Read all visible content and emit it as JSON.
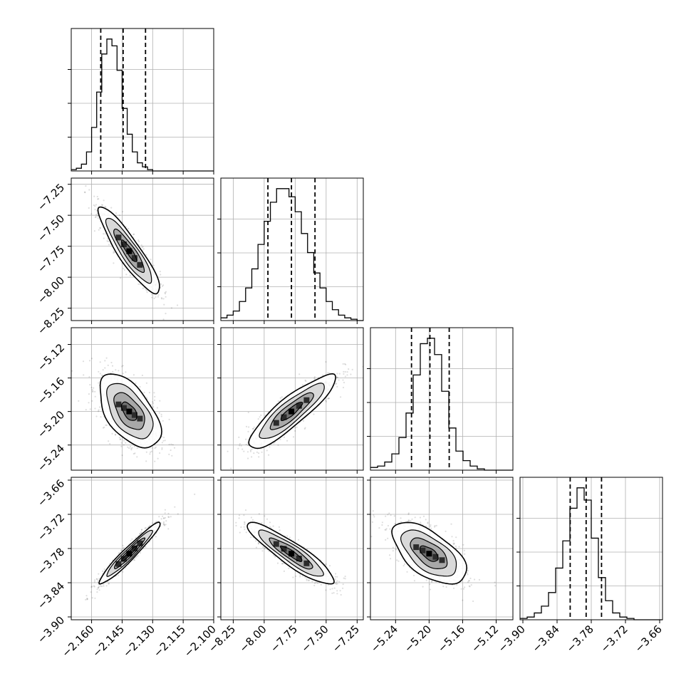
{
  "chart_data": {
    "type": "corner",
    "parameters": 4,
    "quantiles": [
      0.16,
      0.5,
      0.84
    ],
    "axes": {
      "p0": {
        "range": [
          -2.17,
          -2.1
        ],
        "ticks": [
          -2.16,
          -2.145,
          -2.13,
          -2.115,
          -2.1
        ],
        "tick_labels": [
          "−2.160",
          "−2.145",
          "−2.130",
          "−2.115",
          "−2.100"
        ]
      },
      "p1": {
        "range": [
          -8.35,
          -7.2
        ],
        "ticks": [
          -8.25,
          -8.0,
          -7.75,
          -7.5,
          -7.25
        ],
        "tick_labels": [
          "−8.25",
          "−8.00",
          "−7.75",
          "−7.50",
          "−7.25"
        ]
      },
      "p2": {
        "range": [
          -5.27,
          -5.1
        ],
        "ticks": [
          -5.24,
          -5.2,
          -5.16,
          -5.12
        ],
        "tick_labels": [
          "−5.24",
          "−5.20",
          "−5.16",
          "−5.12"
        ]
      },
      "p3": {
        "range": [
          -3.905,
          -3.655
        ],
        "ticks": [
          -3.9,
          -3.84,
          -3.78,
          -3.72,
          -3.66
        ],
        "tick_labels": [
          "−3.90",
          "−3.84",
          "−3.78",
          "−3.72",
          "−3.66"
        ]
      }
    },
    "histograms": [
      {
        "param": "p0",
        "bin_start": -2.17,
        "bin_width": 0.0025,
        "counts": [
          1,
          2,
          5,
          14,
          32,
          58,
          86,
          97,
          92,
          74,
          46,
          27,
          14,
          6,
          3,
          1,
          0,
          0,
          0,
          0,
          0,
          0,
          0,
          0,
          0,
          0,
          0,
          0
        ],
        "quantile_lines": [
          -2.1555,
          -2.1445,
          -2.1335
        ]
      },
      {
        "param": "p1",
        "bin_start": -8.35,
        "bin_width": 0.05,
        "counts": [
          2,
          4,
          7,
          14,
          24,
          38,
          56,
          73,
          87,
          97,
          97,
          91,
          80,
          64,
          50,
          35,
          24,
          14,
          8,
          4,
          2,
          1,
          0
        ],
        "quantile_lines": [
          -7.97,
          -7.78,
          -7.59
        ]
      },
      {
        "param": "p2",
        "bin_start": -5.27,
        "bin_width": 0.0085,
        "counts": [
          2,
          3,
          6,
          12,
          24,
          42,
          70,
          93,
          97,
          85,
          58,
          31,
          14,
          7,
          3,
          1,
          0,
          0,
          0,
          0
        ],
        "quantile_lines": [
          -5.221,
          -5.199,
          -5.176
        ]
      },
      {
        "param": "p3",
        "bin_start": -3.905,
        "bin_width": 0.0125,
        "counts": [
          1,
          2,
          5,
          10,
          20,
          38,
          58,
          82,
          97,
          88,
          60,
          31,
          14,
          5,
          2,
          1,
          0,
          0,
          0,
          0
        ],
        "quantile_lines": [
          -3.817,
          -3.789,
          -3.762
        ]
      }
    ],
    "pairs": [
      {
        "x": "p0",
        "y": "p1",
        "center": [
          -2.1415,
          -7.79
        ],
        "sd": [
          0.0075,
          0.175
        ],
        "corr": -0.9
      },
      {
        "x": "p0",
        "y": "p2",
        "center": [
          -2.1415,
          -5.2
        ],
        "sd": [
          0.0075,
          0.022
        ],
        "corr": -0.55
      },
      {
        "x": "p1",
        "y": "p2",
        "center": [
          -7.78,
          -5.2
        ],
        "sd": [
          0.175,
          0.022
        ],
        "corr": 0.88
      },
      {
        "x": "p0",
        "y": "p3",
        "center": [
          -2.1415,
          -3.789
        ],
        "sd": [
          0.0075,
          0.027
        ],
        "corr": 0.96
      },
      {
        "x": "p1",
        "y": "p3",
        "center": [
          -7.78,
          -3.789
        ],
        "sd": [
          0.175,
          0.027
        ],
        "corr": -0.9
      },
      {
        "x": "p2",
        "y": "p3",
        "center": [
          -5.2,
          -3.789
        ],
        "sd": [
          0.022,
          0.027
        ],
        "corr": -0.6
      }
    ],
    "contour_levels_sigma": [
      0.5,
      1.0,
      1.5,
      2.0
    ],
    "grid": true,
    "title": "",
    "legend": "none"
  }
}
